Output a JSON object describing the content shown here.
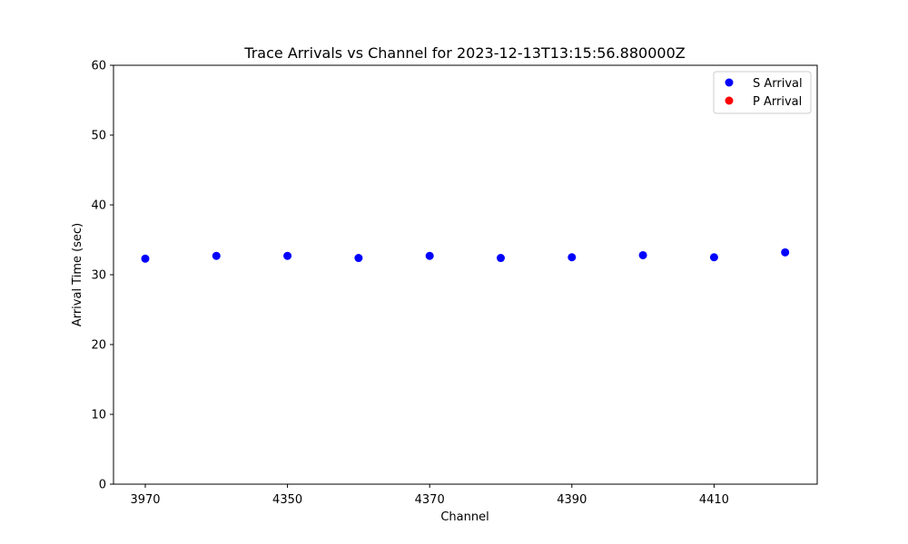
{
  "chart_data": {
    "type": "scatter",
    "title": "Trace Arrivals vs Channel for 2023-12-13T13:15:56.880000Z",
    "xlabel": "Channel",
    "ylabel": "Arrival Time (sec)",
    "ylim": [
      0,
      60
    ],
    "yticks": [
      "0",
      "10",
      "20",
      "30",
      "40",
      "50",
      "60"
    ],
    "xticks": [
      "3970",
      "4350",
      "4370",
      "4390",
      "4410"
    ],
    "categories": [
      "3970",
      "",
      "4350",
      "",
      "4370",
      "",
      "4390",
      "",
      "4410",
      ""
    ],
    "grid": false,
    "legend_position": "top-right",
    "series": [
      {
        "name": "S Arrival",
        "color": "#0000ff",
        "values": [
          32.3,
          32.7,
          32.7,
          32.4,
          32.7,
          32.4,
          32.5,
          32.8,
          32.5,
          33.2
        ]
      },
      {
        "name": "P Arrival",
        "color": "#ff0000",
        "values": []
      }
    ]
  }
}
